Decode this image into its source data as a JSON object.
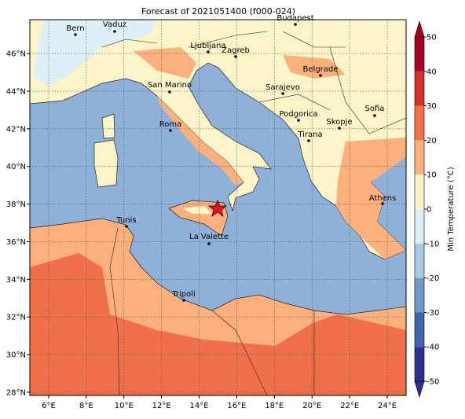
{
  "map": {
    "title": "Forecast of 2021051400 (f000-024)",
    "cities": [
      "Bern",
      "Vaduz",
      "Budapest",
      "Ljubljana",
      "Zagreb",
      "Belgrade",
      "San Marino",
      "Sarajevo",
      "Sofia",
      "Roma",
      "Podgorica",
      "Skopje",
      "Tirana",
      "Athens",
      "Tunis",
      "La Valette",
      "Tripoli"
    ],
    "lon_lim": [
      5,
      25
    ],
    "lat_lim": [
      27.83,
      47.8
    ],
    "lon_ticks": [
      {
        "value": 6,
        "label": "6°E"
      },
      {
        "value": 8,
        "label": "8°E"
      },
      {
        "value": 10,
        "label": "10°E"
      },
      {
        "value": 12,
        "label": "12°E"
      },
      {
        "value": 14,
        "label": "14°E"
      },
      {
        "value": 16,
        "label": "16°E"
      },
      {
        "value": 18,
        "label": "18°E"
      },
      {
        "value": 20,
        "label": "20°E"
      },
      {
        "value": 22,
        "label": "22°E"
      },
      {
        "value": 24,
        "label": "24°E"
      }
    ],
    "lat_ticks": [
      {
        "value": 28,
        "label": "28°N"
      },
      {
        "value": 30,
        "label": "30°N"
      },
      {
        "value": 32,
        "label": "32°N"
      },
      {
        "value": 34,
        "label": "34°N"
      },
      {
        "value": 36,
        "label": "36°N"
      },
      {
        "value": 38,
        "label": "38°N"
      },
      {
        "value": 40,
        "label": "40°N"
      },
      {
        "value": 42,
        "label": "42°N"
      },
      {
        "value": 44,
        "label": "44°N"
      },
      {
        "value": 46,
        "label": "46°N"
      }
    ],
    "colorbar": {
      "label": "Min Temperature (°C)",
      "range": [
        -50,
        50
      ],
      "ticks": [
        -50,
        -40,
        -30,
        -20,
        -10,
        0,
        10,
        20,
        30,
        40,
        50
      ],
      "colors": [
        "#2b2f8f",
        "#3f66ab",
        "#6d9ac8",
        "#a7c9e2",
        "#def0f6",
        "#fdf5c9",
        "#fcb07e",
        "#f0704a",
        "#d3322b",
        "#a50026"
      ]
    }
  }
}
